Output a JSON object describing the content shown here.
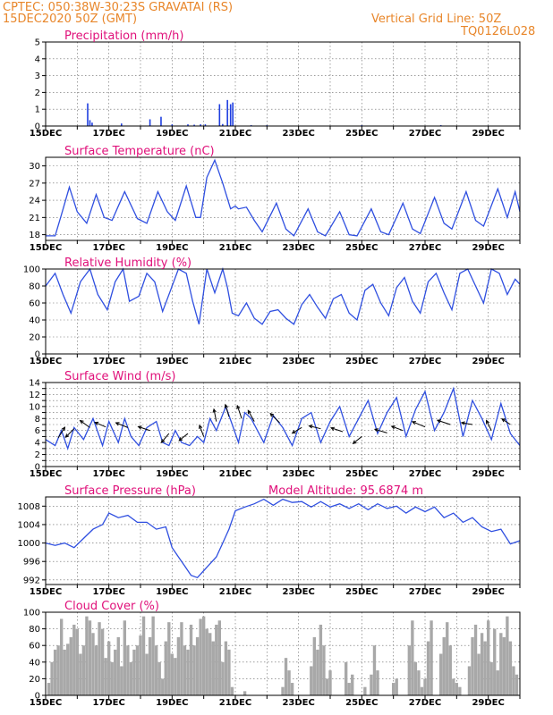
{
  "header": {
    "line1_left": "CPTEC:   050:38W-30:23S   GRAVATAI (RS)",
    "line2_left": "15DEC2020 50Z (GMT)",
    "line2_right": "Vertical Grid Line: 50Z",
    "line3_right": "TQ0126L028"
  },
  "colors": {
    "header": "#e8862a",
    "title": "#e0107a",
    "line": "#2f4fe0",
    "bar": "#1f3fe0",
    "cloud": "#a8a8a8",
    "arrow": "#000000"
  },
  "chart_data": [
    {
      "id": "precip",
      "type": "bar",
      "title": "Precipitation (mm/h)",
      "xlabel": "",
      "ylabel": "",
      "xlim": [
        0,
        15
      ],
      "ylim": [
        0,
        5
      ],
      "yticks": [
        0,
        1,
        2,
        3,
        4,
        5
      ],
      "xticks": [
        "15DEC",
        "17DEC",
        "19DEC",
        "21DEC",
        "23DEC",
        "25DEC",
        "27DEC",
        "29DEC"
      ],
      "x": [
        1.33,
        1.4,
        1.47,
        2.4,
        3.3,
        3.65,
        4.0,
        4.5,
        4.7,
        4.9,
        5.05,
        5.5,
        5.6,
        5.75,
        5.85,
        5.92,
        6.5,
        7.0,
        10.0,
        12.5,
        14.0
      ],
      "values": [
        1.35,
        0.35,
        0.2,
        0.15,
        0.4,
        0.55,
        0.1,
        0.1,
        0.08,
        0.1,
        0.1,
        1.3,
        0.12,
        1.55,
        1.3,
        1.4,
        0.05,
        0.05,
        0.05,
        0.05,
        0.03
      ]
    },
    {
      "id": "temp",
      "type": "line",
      "title": "Surface Temperature (nC)",
      "xlabel": "",
      "ylabel": "",
      "xlim": [
        0,
        15
      ],
      "ylim": [
        17,
        31.5
      ],
      "yticks": [
        18,
        21,
        24,
        27,
        30
      ],
      "xticks": [
        "15DEC",
        "17DEC",
        "19DEC",
        "21DEC",
        "23DEC",
        "25DEC",
        "27DEC",
        "29DEC"
      ],
      "x": [
        0,
        0.3,
        0.5,
        0.75,
        1.0,
        1.3,
        1.6,
        1.85,
        2.1,
        2.5,
        2.9,
        3.2,
        3.55,
        3.85,
        4.1,
        4.45,
        4.75,
        4.9,
        5.1,
        5.35,
        5.6,
        5.85,
        6.0,
        6.1,
        6.35,
        6.6,
        6.85,
        7.3,
        7.6,
        7.85,
        8.3,
        8.6,
        8.85,
        9.3,
        9.6,
        9.85,
        10.3,
        10.6,
        10.85,
        11.3,
        11.6,
        11.85,
        12.3,
        12.6,
        12.85,
        13.3,
        13.6,
        13.85,
        14.3,
        14.6,
        14.85,
        15.0
      ],
      "values": [
        17.8,
        17.8,
        21.5,
        26.3,
        22.0,
        20.0,
        25.0,
        21.0,
        20.5,
        25.5,
        20.8,
        20.0,
        25.5,
        22.0,
        20.5,
        26.5,
        21.0,
        21.0,
        28.0,
        31.0,
        27.0,
        22.5,
        23.0,
        22.5,
        22.8,
        20.5,
        18.5,
        23.5,
        19.0,
        17.8,
        22.5,
        18.5,
        17.8,
        22.0,
        18.0,
        17.8,
        22.5,
        18.5,
        18.0,
        23.5,
        19.0,
        18.2,
        24.5,
        20.0,
        19.0,
        25.5,
        20.5,
        19.5,
        26.0,
        21.0,
        25.5,
        22.0
      ]
    },
    {
      "id": "rh",
      "type": "line",
      "title": "Relative Humidity (%)",
      "xlabel": "",
      "ylabel": "",
      "xlim": [
        0,
        15
      ],
      "ylim": [
        0,
        100
      ],
      "yticks": [
        0,
        20,
        40,
        60,
        80,
        100
      ],
      "xticks": [
        "15DEC",
        "17DEC",
        "19DEC",
        "21DEC",
        "23DEC",
        "25DEC",
        "27DEC",
        "29DEC"
      ],
      "x": [
        0,
        0.3,
        0.55,
        0.8,
        1.1,
        1.4,
        1.65,
        1.95,
        2.2,
        2.45,
        2.65,
        2.95,
        3.2,
        3.45,
        3.7,
        3.95,
        4.2,
        4.45,
        4.65,
        4.85,
        5.1,
        5.35,
        5.6,
        5.75,
        5.9,
        6.1,
        6.35,
        6.6,
        6.85,
        7.1,
        7.35,
        7.6,
        7.85,
        8.1,
        8.35,
        8.6,
        8.85,
        9.1,
        9.35,
        9.6,
        9.85,
        10.1,
        10.35,
        10.6,
        10.85,
        11.1,
        11.35,
        11.6,
        11.85,
        12.1,
        12.35,
        12.6,
        12.85,
        13.1,
        13.35,
        13.6,
        13.85,
        14.1,
        14.35,
        14.6,
        14.85,
        15.0
      ],
      "values": [
        80,
        95,
        70,
        48,
        85,
        100,
        70,
        52,
        85,
        100,
        62,
        68,
        95,
        85,
        50,
        75,
        100,
        95,
        62,
        35,
        100,
        72,
        100,
        78,
        48,
        45,
        60,
        42,
        35,
        50,
        52,
        42,
        35,
        58,
        70,
        55,
        42,
        65,
        70,
        48,
        40,
        75,
        82,
        60,
        45,
        78,
        90,
        62,
        48,
        85,
        95,
        72,
        52,
        95,
        100,
        80,
        60,
        100,
        95,
        70,
        88,
        82
      ]
    },
    {
      "id": "wind",
      "type": "line",
      "title": "Surface Wind (m/s)",
      "xlabel": "",
      "ylabel": "",
      "xlim": [
        0,
        15
      ],
      "ylim": [
        0,
        14
      ],
      "yticks": [
        0,
        1,
        2,
        3,
        4,
        5,
        6,
        7,
        8,
        9,
        10,
        11,
        12,
        13,
        14
      ],
      "ytick_labels": [
        0,
        2,
        4,
        6,
        8,
        10,
        12,
        14
      ],
      "xticks": [
        "15DEC",
        "17DEC",
        "19DEC",
        "21DEC",
        "23DEC",
        "25DEC",
        "27DEC",
        "29DEC"
      ],
      "x": [
        0,
        0.3,
        0.5,
        0.7,
        0.9,
        1.2,
        1.5,
        1.8,
        2.0,
        2.3,
        2.5,
        2.7,
        2.95,
        3.2,
        3.5,
        3.7,
        3.9,
        4.1,
        4.3,
        4.55,
        4.8,
        5.0,
        5.2,
        5.4,
        5.55,
        5.7,
        5.9,
        6.1,
        6.3,
        6.5,
        6.7,
        6.9,
        7.2,
        7.5,
        7.8,
        8.1,
        8.4,
        8.7,
        9.0,
        9.3,
        9.6,
        9.9,
        10.2,
        10.5,
        10.8,
        11.1,
        11.4,
        11.7,
        12.0,
        12.3,
        12.6,
        12.9,
        13.2,
        13.5,
        13.8,
        14.1,
        14.4,
        14.7,
        15.0
      ],
      "values": [
        4.5,
        3.5,
        6.0,
        3.0,
        6.5,
        4.5,
        8.0,
        3.5,
        7.5,
        4.0,
        8.0,
        5.0,
        3.5,
        6.5,
        7.5,
        4.0,
        3.5,
        6.0,
        4.0,
        3.5,
        5.0,
        4.0,
        8.0,
        6.0,
        8.0,
        10.0,
        7.0,
        4.0,
        9.0,
        8.0,
        6.0,
        4.0,
        8.5,
        6.5,
        3.5,
        8.0,
        9.0,
        4.0,
        7.5,
        10.0,
        5.0,
        8.0,
        11.0,
        5.5,
        9.0,
        11.5,
        5.0,
        9.5,
        12.5,
        6.0,
        9.0,
        13.0,
        5.0,
        11.0,
        8.0,
        4.5,
        10.5,
        5.5,
        3.5
      ],
      "arrows": [
        {
          "x": 0.4,
          "y": 4.8,
          "u": 0.5,
          "v": 0.8
        },
        {
          "x": 0.9,
          "y": 6.3,
          "u": -0.6,
          "v": -0.6
        },
        {
          "x": 1.4,
          "y": 6.5,
          "u": -0.7,
          "v": 0.5
        },
        {
          "x": 1.9,
          "y": 6.6,
          "u": -0.7,
          "v": 0.3
        },
        {
          "x": 2.6,
          "y": 6.5,
          "u": -1.0,
          "v": 0.4
        },
        {
          "x": 3.3,
          "y": 6.0,
          "u": -0.9,
          "v": 0.3
        },
        {
          "x": 3.9,
          "y": 5.5,
          "u": -0.5,
          "v": -0.6
        },
        {
          "x": 4.5,
          "y": 5.5,
          "u": -0.5,
          "v": -0.4
        },
        {
          "x": 5.0,
          "y": 5.0,
          "u": -0.3,
          "v": 0.8
        },
        {
          "x": 5.4,
          "y": 7.5,
          "u": -0.2,
          "v": 1.0
        },
        {
          "x": 5.8,
          "y": 8.3,
          "u": -0.3,
          "v": 1.0
        },
        {
          "x": 6.2,
          "y": 8.0,
          "u": -0.4,
          "v": 1.2
        },
        {
          "x": 6.6,
          "y": 7.5,
          "u": -0.5,
          "v": 0.9
        },
        {
          "x": 7.4,
          "y": 7.3,
          "u": -0.8,
          "v": 0.8
        },
        {
          "x": 8.1,
          "y": 6.5,
          "u": -0.5,
          "v": -0.3
        },
        {
          "x": 8.7,
          "y": 6.3,
          "u": -0.8,
          "v": 0.2
        },
        {
          "x": 9.4,
          "y": 5.8,
          "u": -0.9,
          "v": 0.3
        },
        {
          "x": 10.0,
          "y": 5.0,
          "u": -0.5,
          "v": -0.4
        },
        {
          "x": 10.8,
          "y": 5.6,
          "u": -1.0,
          "v": 0.3
        },
        {
          "x": 11.3,
          "y": 6.0,
          "u": -0.8,
          "v": 0.3
        },
        {
          "x": 12.0,
          "y": 6.6,
          "u": -1.2,
          "v": 0.5
        },
        {
          "x": 12.8,
          "y": 7.0,
          "u": -1.2,
          "v": 0.4
        },
        {
          "x": 13.5,
          "y": 7.0,
          "u": -0.6,
          "v": 0.1
        },
        {
          "x": 14.1,
          "y": 6.0,
          "u": -0.3,
          "v": 0.6
        },
        {
          "x": 14.7,
          "y": 7.0,
          "u": -0.3,
          "v": 0.2
        }
      ]
    },
    {
      "id": "pres",
      "type": "line",
      "title": "Surface Pressure (hPa)",
      "annotation": "Model Altitude: 95.6874 m",
      "xlabel": "",
      "ylabel": "",
      "xlim": [
        0,
        15
      ],
      "ylim": [
        991,
        1010
      ],
      "yticks": [
        992,
        996,
        1000,
        1004,
        1008
      ],
      "xticks": [
        "15DEC",
        "17DEC",
        "19DEC",
        "21DEC",
        "23DEC",
        "25DEC",
        "27DEC",
        "29DEC"
      ],
      "x": [
        0,
        0.3,
        0.6,
        0.9,
        1.2,
        1.5,
        1.8,
        2.0,
        2.3,
        2.6,
        2.9,
        3.2,
        3.5,
        3.8,
        4.0,
        4.2,
        4.4,
        4.6,
        4.8,
        5.0,
        5.2,
        5.4,
        5.6,
        5.8,
        6.0,
        6.3,
        6.6,
        6.9,
        7.2,
        7.5,
        7.8,
        8.1,
        8.4,
        8.7,
        9.0,
        9.3,
        9.6,
        9.9,
        10.2,
        10.5,
        10.8,
        11.1,
        11.4,
        11.7,
        12.0,
        12.3,
        12.6,
        12.9,
        13.2,
        13.5,
        13.8,
        14.1,
        14.4,
        14.7,
        15.0
      ],
      "values": [
        1000,
        999.5,
        1000,
        999,
        1001,
        1003,
        1004,
        1006.5,
        1005.5,
        1006,
        1004.5,
        1004.5,
        1003,
        1003.5,
        999,
        997,
        995,
        993,
        992.5,
        994,
        995.5,
        997,
        1000,
        1003,
        1007,
        1007.8,
        1008.5,
        1009.5,
        1008.2,
        1009.5,
        1008.8,
        1009,
        1007.8,
        1009,
        1007.8,
        1008.5,
        1007.5,
        1008.5,
        1007.2,
        1008.5,
        1007.5,
        1008,
        1006.5,
        1007.8,
        1006.8,
        1007.8,
        1005.5,
        1006.5,
        1004.5,
        1005.5,
        1003.5,
        1002.5,
        1003,
        999.8,
        1000.5
      ]
    },
    {
      "id": "cloud",
      "type": "bar",
      "title": "Cloud Cover (%)",
      "xlabel": "",
      "ylabel": "",
      "xlim": [
        0,
        15
      ],
      "ylim": [
        0,
        100
      ],
      "yticks": [
        0,
        20,
        40,
        60,
        80,
        100
      ],
      "xticks": [
        "15DEC",
        "17DEC",
        "19DEC",
        "21DEC",
        "23DEC",
        "25DEC",
        "27DEC",
        "29DEC"
      ],
      "x": [
        0.1,
        0.2,
        0.3,
        0.4,
        0.5,
        0.6,
        0.7,
        0.8,
        0.9,
        1.0,
        1.1,
        1.2,
        1.3,
        1.4,
        1.5,
        1.6,
        1.7,
        1.8,
        1.9,
        2.0,
        2.1,
        2.2,
        2.3,
        2.4,
        2.5,
        2.6,
        2.7,
        2.8,
        2.9,
        3.0,
        3.1,
        3.2,
        3.3,
        3.4,
        3.5,
        3.6,
        3.7,
        3.8,
        3.9,
        4.0,
        4.1,
        4.2,
        4.3,
        4.4,
        4.5,
        4.6,
        4.7,
        4.8,
        4.9,
        5.0,
        5.1,
        5.2,
        5.3,
        5.4,
        5.5,
        5.6,
        5.7,
        5.8,
        5.9,
        6.3,
        7.5,
        7.6,
        7.7,
        7.8,
        8.4,
        8.5,
        8.6,
        8.7,
        8.8,
        8.9,
        9.0,
        9.5,
        9.6,
        9.7,
        10.1,
        10.3,
        10.4,
        10.5,
        11.0,
        11.1,
        11.5,
        11.6,
        11.7,
        11.8,
        11.9,
        12.0,
        12.1,
        12.2,
        12.5,
        12.6,
        12.7,
        12.8,
        12.9,
        13.0,
        13.1,
        13.4,
        13.5,
        13.6,
        13.7,
        13.8,
        13.9,
        14.0,
        14.1,
        14.2,
        14.3,
        14.4,
        14.5,
        14.6,
        14.7,
        14.8,
        14.9
      ],
      "values": [
        15,
        40,
        55,
        60,
        92,
        55,
        62,
        70,
        85,
        80,
        50,
        60,
        95,
        90,
        75,
        60,
        88,
        80,
        45,
        65,
        40,
        55,
        70,
        35,
        90,
        60,
        40,
        55,
        60,
        72,
        95,
        50,
        70,
        95,
        60,
        40,
        20,
        65,
        88,
        50,
        45,
        70,
        88,
        60,
        55,
        85,
        60,
        70,
        92,
        95,
        80,
        75,
        65,
        85,
        90,
        40,
        65,
        55,
        10,
        5,
        10,
        45,
        30,
        15,
        35,
        70,
        55,
        85,
        60,
        20,
        30,
        40,
        15,
        25,
        10,
        25,
        60,
        30,
        15,
        20,
        60,
        90,
        40,
        30,
        10,
        20,
        65,
        90,
        50,
        70,
        88,
        60,
        20,
        15,
        10,
        35,
        70,
        85,
        50,
        75,
        65,
        90,
        40,
        80,
        30,
        75,
        70,
        95,
        65,
        35,
        25
      ]
    }
  ]
}
